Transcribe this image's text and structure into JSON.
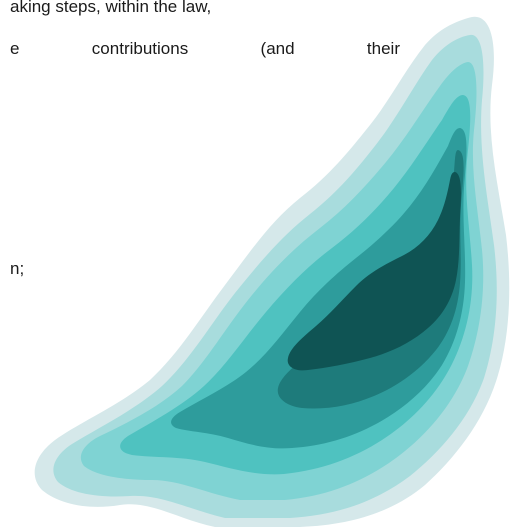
{
  "document": {
    "lines": [
      "aking steps, within the law,",
      "e contributions (and their",
      "n;"
    ]
  },
  "decoration": {
    "icon": "layered-paper-cut-wave-icon",
    "colors": [
      "#d5e8ea",
      "#a8dcdd",
      "#7fd3d3",
      "#4fc2c0",
      "#2e9c9c",
      "#1e7b7b",
      "#0f5454"
    ]
  }
}
